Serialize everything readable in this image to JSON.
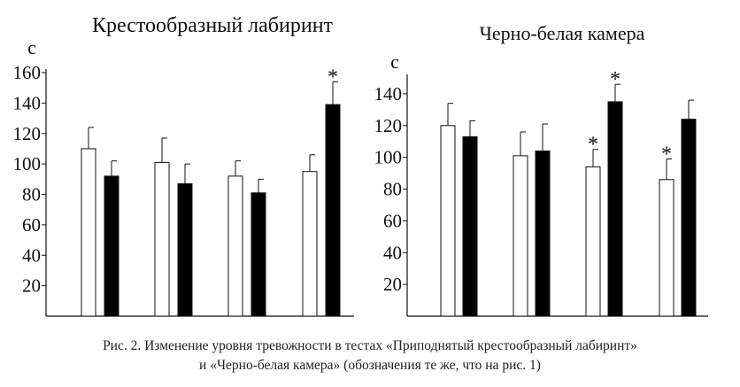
{
  "chart_data": [
    {
      "type": "bar",
      "title": "Крестообразный лабиринт",
      "ylabel": "с",
      "ylim": [
        0,
        160
      ],
      "yticks": [
        20,
        40,
        60,
        80,
        100,
        120,
        140,
        160
      ],
      "grid": false,
      "legend": "none",
      "categories": [
        "",
        "",
        "",
        ""
      ],
      "series": [
        {
          "fill": "#ffffff",
          "values": [
            110,
            101,
            92,
            95
          ],
          "errors": [
            14,
            16,
            10,
            11
          ]
        },
        {
          "fill": "#000000",
          "values": [
            92,
            87,
            81,
            139
          ],
          "errors": [
            10,
            13,
            9,
            15
          ]
        }
      ],
      "annotations": [
        {
          "text": "*",
          "category": 3,
          "series": 1
        }
      ]
    },
    {
      "type": "bar",
      "title": "Черно-белая камера",
      "ylabel": "с",
      "ylim": [
        0,
        150
      ],
      "yticks": [
        20,
        40,
        60,
        80,
        100,
        120,
        140
      ],
      "grid": false,
      "legend": "none",
      "categories": [
        "",
        "",
        "",
        ""
      ],
      "series": [
        {
          "fill": "#ffffff",
          "values": [
            120,
            101,
            94,
            86
          ],
          "errors": [
            14,
            15,
            11,
            13
          ]
        },
        {
          "fill": "#000000",
          "values": [
            113,
            104,
            135,
            124
          ],
          "errors": [
            10,
            17,
            11,
            12
          ]
        }
      ],
      "annotations": [
        {
          "text": "*",
          "category": 2,
          "series": 0
        },
        {
          "text": "*",
          "category": 2,
          "series": 1
        },
        {
          "text": "*",
          "category": 3,
          "series": 0
        }
      ]
    }
  ],
  "caption": {
    "line1": "Рис. 2. Изменение уровня тревожности в тестах «Приподнятый крестообразный лабиринт»",
    "line2": "и «Черно-белая камера» (обозначения те же, что на рис. 1)"
  }
}
